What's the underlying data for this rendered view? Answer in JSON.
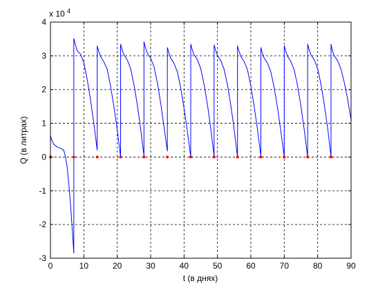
{
  "chart_data": {
    "type": "line",
    "xlabel": "t (в днях)",
    "ylabel": "Q (в литрах)",
    "exponent_label": "x 10",
    "exponent_power": "4",
    "xlim": [
      0,
      90
    ],
    "ylim": [
      -3,
      4
    ],
    "xticks": [
      0,
      10,
      20,
      30,
      40,
      50,
      60,
      70,
      80,
      90
    ],
    "yticks": [
      -3,
      -2,
      -1,
      0,
      1,
      2,
      3,
      4
    ],
    "xtick_labels": [
      "0",
      "10",
      "20",
      "30",
      "40",
      "50",
      "60",
      "70",
      "80",
      "90"
    ],
    "ytick_labels": [
      "-3",
      "-2",
      "-1",
      "0",
      "1",
      "2",
      "3",
      "4"
    ],
    "grid": true,
    "grid_dashed_x": [
      10,
      20,
      30,
      40,
      50,
      60,
      70,
      80
    ],
    "grid_dashed_y": [
      -2,
      -1,
      0,
      1,
      2,
      3
    ],
    "line_color": "#0000ff",
    "marker_color": "#ff0000",
    "axis_color": "#000000",
    "series": [
      {
        "values_scale": "x 10^4",
        "x": [
          0,
          0.4,
          1,
          2,
          3,
          4,
          4.5,
          5,
          5.5,
          6,
          6.5,
          7,
          7,
          7.4,
          8,
          9,
          10,
          11,
          12,
          13,
          14,
          14,
          14.4,
          15,
          16,
          17,
          18,
          19,
          20,
          21,
          21,
          21.4,
          22,
          23,
          24,
          25,
          26,
          27,
          28,
          28,
          28.4,
          29,
          30,
          31,
          32,
          33,
          34,
          35,
          35,
          35.4,
          36,
          37,
          38,
          39,
          40,
          41,
          42,
          42,
          42.4,
          43,
          44,
          45,
          46,
          47,
          48,
          49,
          49,
          49.4,
          50,
          51,
          52,
          53,
          54,
          55,
          56,
          56,
          56.4,
          57,
          58,
          59,
          60,
          61,
          62,
          63,
          63,
          63.4,
          64,
          65,
          66,
          67,
          68,
          69,
          70,
          70,
          70.4,
          71,
          72,
          73,
          74,
          75,
          76,
          77,
          77,
          77.4,
          78,
          79,
          80,
          81,
          82,
          83,
          84,
          84,
          84.4,
          85,
          86,
          87,
          88,
          89,
          90
        ],
        "y": [
          0.65,
          0.5,
          0.38,
          0.3,
          0.26,
          0.2,
          0.0,
          -0.3,
          -0.8,
          -1.4,
          -2.1,
          -2.85,
          3.52,
          3.35,
          3.15,
          3.05,
          2.8,
          2.3,
          1.7,
          1.0,
          0.2,
          3.3,
          3.15,
          2.98,
          2.82,
          2.6,
          2.1,
          1.5,
          0.8,
          0.0,
          3.35,
          3.2,
          3.03,
          2.88,
          2.62,
          2.15,
          1.55,
          0.85,
          0.03,
          3.42,
          3.25,
          3.08,
          2.93,
          2.68,
          2.2,
          1.6,
          0.9,
          0.17,
          3.25,
          3.1,
          2.93,
          2.78,
          2.52,
          2.05,
          1.45,
          0.75,
          0.0,
          3.35,
          3.2,
          3.03,
          2.88,
          2.62,
          2.15,
          1.55,
          0.85,
          0.02,
          3.33,
          3.18,
          3.01,
          2.86,
          2.6,
          2.13,
          1.53,
          0.83,
          0.0,
          3.3,
          3.15,
          2.98,
          2.83,
          2.58,
          2.1,
          1.5,
          0.8,
          0.02,
          3.25,
          3.1,
          2.93,
          2.78,
          2.52,
          2.05,
          1.45,
          0.75,
          0.0,
          3.3,
          3.15,
          2.98,
          2.83,
          2.58,
          2.1,
          1.5,
          0.8,
          0.0,
          3.35,
          3.2,
          3.03,
          2.88,
          2.62,
          2.15,
          1.55,
          0.85,
          0.0,
          3.35,
          3.15,
          3.0,
          2.85,
          2.6,
          2.2,
          1.7,
          1.1
        ]
      }
    ],
    "markers": {
      "x": [
        0,
        7,
        14,
        21,
        28,
        35,
        42,
        49,
        56,
        63,
        70,
        77,
        84
      ],
      "y": [
        0,
        0,
        0,
        0,
        0,
        0,
        0,
        0,
        0,
        0,
        0,
        0,
        0
      ]
    }
  }
}
